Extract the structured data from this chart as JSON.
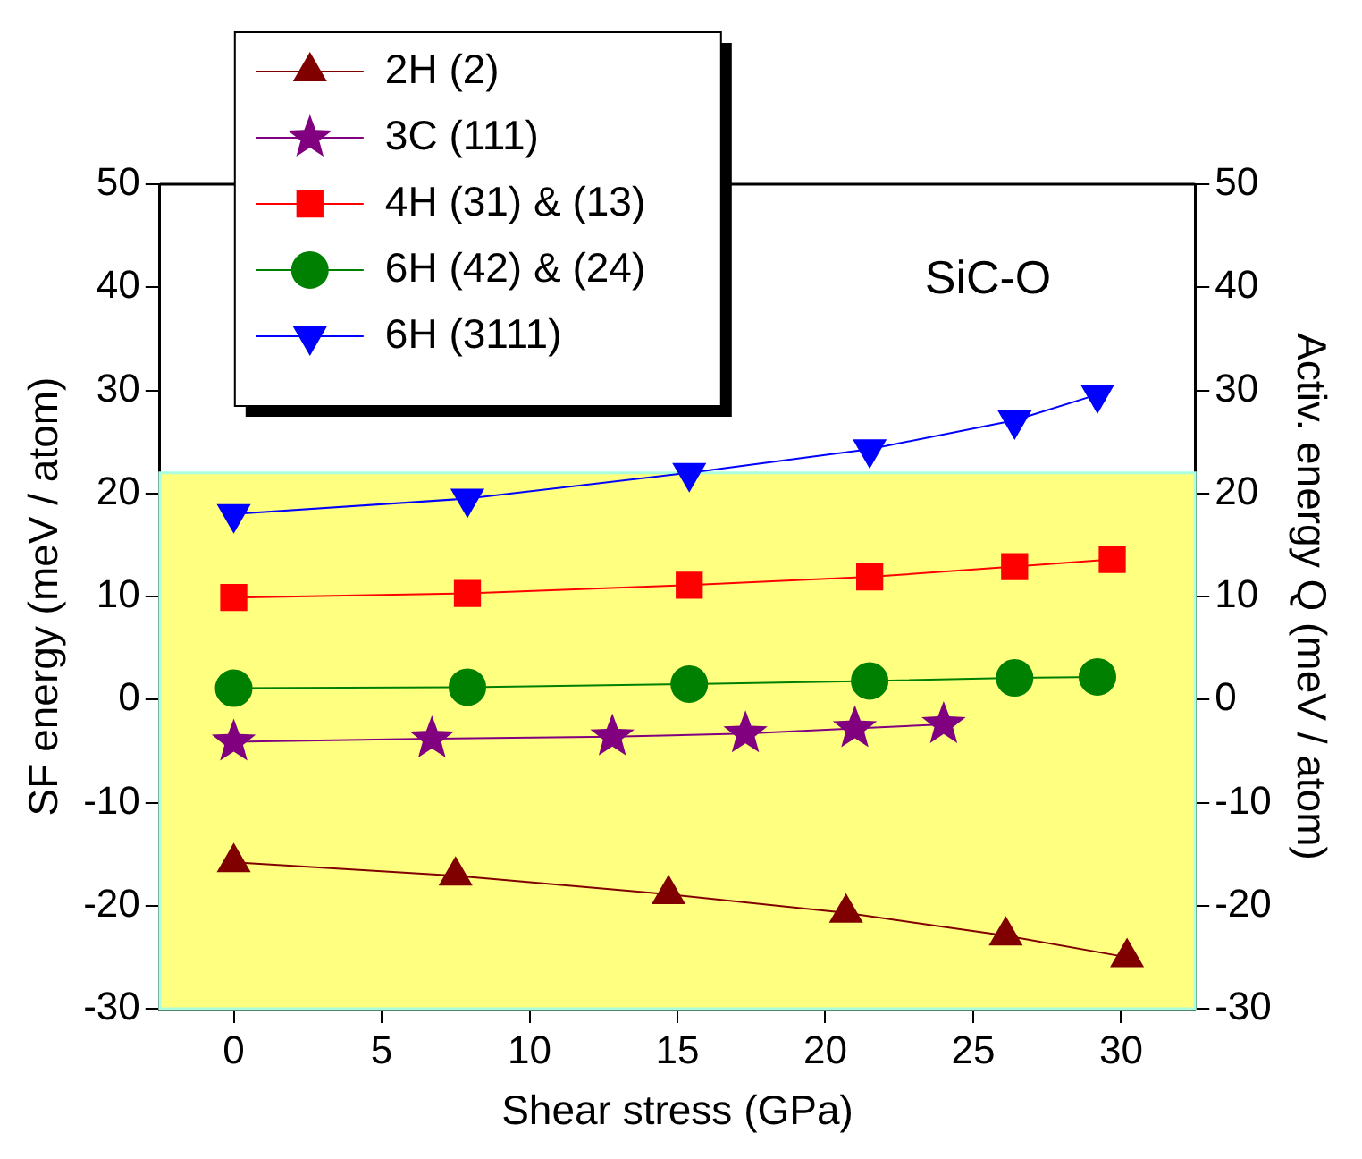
{
  "chart_data": {
    "type": "line",
    "annotations": [
      "SiC-O"
    ],
    "xlabel": "Shear stress (GPa)",
    "ylabel": "SF energy (meV / atom)",
    "y2label": "Activ. energy Q (meV / atom)",
    "xlim": [
      -2.5,
      32.5
    ],
    "xticks": [
      0,
      5,
      10,
      15,
      20,
      25,
      30
    ],
    "ylim": [
      -30,
      50
    ],
    "yticks": [
      -30,
      -20,
      -10,
      0,
      10,
      20,
      30,
      40,
      50
    ],
    "y2lim": [
      -30,
      50
    ],
    "y2ticks": [
      -30,
      -20,
      -10,
      0,
      10,
      20,
      30,
      40,
      50
    ],
    "grid": false,
    "legend": "top left",
    "line_style": "solid",
    "bands": [
      {
        "axis": "y",
        "from": -30,
        "to": 22,
        "color": "#ffff80"
      }
    ],
    "series": [
      {
        "name": "2H (2)",
        "color": "#800000",
        "marker": "triangle",
        "x": [
          0,
          7.5,
          14.7,
          20.7,
          26.1,
          30.2
        ],
        "values": [
          -15.8,
          -17.1,
          -18.9,
          -20.7,
          -22.9,
          -25.0
        ]
      },
      {
        "name": "3C (111)",
        "color": "#800080",
        "marker": "star",
        "x": [
          0,
          6.7,
          12.8,
          17.3,
          21.0,
          24.0
        ],
        "values": [
          -4.1,
          -3.8,
          -3.6,
          -3.3,
          -2.8,
          -2.4
        ]
      },
      {
        "name": "4H (31) & (13)",
        "color": "#ff0000",
        "marker": "square",
        "x": [
          0,
          7.9,
          15.4,
          21.5,
          26.4,
          29.7
        ],
        "values": [
          9.9,
          10.3,
          11.1,
          11.9,
          12.9,
          13.6
        ]
      },
      {
        "name": "6H (42) & (24)",
        "color": "#008000",
        "marker": "circle",
        "x": [
          0,
          7.9,
          15.4,
          21.5,
          26.4,
          29.2
        ],
        "values": [
          1.1,
          1.2,
          1.5,
          1.8,
          2.1,
          2.2
        ]
      },
      {
        "name": "6H (3111)",
        "color": "#0000ff",
        "marker": "triangle-down",
        "x": [
          0,
          7.9,
          15.4,
          21.5,
          26.4,
          29.2
        ],
        "values": [
          18.0,
          19.5,
          22.0,
          24.3,
          27.1,
          29.6
        ]
      }
    ]
  }
}
